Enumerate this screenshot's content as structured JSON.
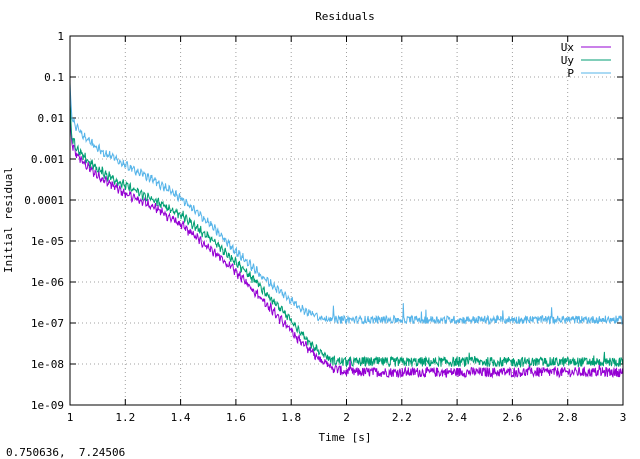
{
  "window": {
    "status_readout": "0.750636,  7.24506"
  },
  "chart_data": {
    "type": "line",
    "title": "Residuals",
    "xlabel": "Time [s]",
    "ylabel": "Initial residual",
    "xlim": [
      1,
      3
    ],
    "ylim": [
      1e-09,
      1
    ],
    "yscale": "log",
    "grid": true,
    "legend_position": "top-right",
    "x_ticks": [
      1,
      1.2,
      1.4,
      1.6,
      1.8,
      2,
      2.2,
      2.4,
      2.6,
      2.8,
      3
    ],
    "x_tick_labels": [
      "1",
      "1.2",
      "1.4",
      "1.6",
      "1.8",
      "2",
      "2.2",
      "2.4",
      "2.6",
      "2.8",
      "3"
    ],
    "y_ticks": [
      1e-09,
      1e-08,
      1e-07,
      1e-06,
      1e-05,
      0.0001,
      0.001,
      0.01,
      0.1,
      1
    ],
    "y_tick_labels": [
      "1e-09",
      "1e-08",
      "1e-07",
      "1e-06",
      "1e-05",
      "0.0001",
      "0.001",
      "0.01",
      "0.1",
      "1"
    ],
    "series": [
      {
        "name": "Ux",
        "color": "#9400d3",
        "x": [
          1.0,
          1.005,
          1.02,
          1.05,
          1.1,
          1.2,
          1.3,
          1.4,
          1.5,
          1.6,
          1.7,
          1.8,
          1.85,
          1.9,
          1.95,
          2.0,
          2.2,
          2.5,
          2.8,
          3.0
        ],
        "log10y": [
          -1.8,
          -2.6,
          -2.85,
          -3.1,
          -3.4,
          -3.85,
          -4.15,
          -4.6,
          -5.15,
          -5.75,
          -6.45,
          -7.2,
          -7.55,
          -7.85,
          -8.1,
          -8.2,
          -8.2,
          -8.2,
          -8.2,
          -8.2
        ],
        "noise": 0.16
      },
      {
        "name": "Uy",
        "color": "#009e73",
        "x": [
          1.0,
          1.005,
          1.02,
          1.05,
          1.1,
          1.2,
          1.3,
          1.4,
          1.5,
          1.6,
          1.7,
          1.8,
          1.85,
          1.9,
          1.95,
          2.0,
          2.2,
          2.5,
          2.8,
          3.0
        ],
        "log10y": [
          -1.5,
          -2.45,
          -2.7,
          -2.95,
          -3.25,
          -3.65,
          -4.0,
          -4.35,
          -4.9,
          -5.5,
          -6.2,
          -6.95,
          -7.35,
          -7.7,
          -7.92,
          -7.95,
          -7.95,
          -7.95,
          -7.95,
          -7.95
        ],
        "noise": 0.16
      },
      {
        "name": "P",
        "color": "#56b4e9",
        "x": [
          1.0,
          1.005,
          1.02,
          1.05,
          1.1,
          1.2,
          1.3,
          1.4,
          1.5,
          1.6,
          1.7,
          1.8,
          1.85,
          1.9,
          1.95,
          2.0,
          2.2,
          2.5,
          2.8,
          3.0
        ],
        "log10y": [
          -1.2,
          -1.9,
          -2.2,
          -2.45,
          -2.75,
          -3.15,
          -3.5,
          -3.95,
          -4.55,
          -5.25,
          -5.9,
          -6.45,
          -6.7,
          -6.85,
          -6.92,
          -6.92,
          -6.92,
          -6.92,
          -6.92,
          -6.92
        ],
        "noise": 0.13
      }
    ]
  }
}
